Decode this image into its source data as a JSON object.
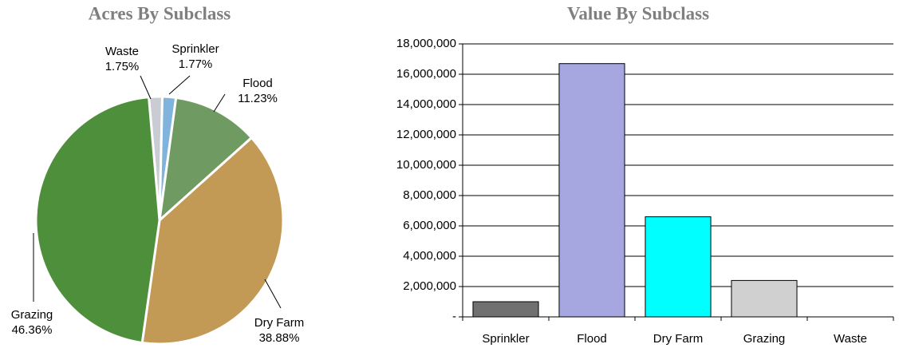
{
  "chart_data": [
    {
      "type": "pie",
      "title": "Acres By Subclass",
      "categories": [
        "Waste",
        "Sprinkler",
        "Flood",
        "Dry Farm",
        "Grazing"
      ],
      "values": [
        1.75,
        1.77,
        11.23,
        38.88,
        46.36
      ],
      "value_labels": [
        "1.75%",
        "1.77%",
        "11.23%",
        "38.88%",
        "46.36%"
      ],
      "colors": [
        "#c9ccd3",
        "#80b4dc",
        "#6f9a62",
        "#c29a55",
        "#4e8f3c"
      ]
    },
    {
      "type": "bar",
      "title": "Value By Subclass",
      "categories": [
        "Sprinkler",
        "Flood",
        "Dry Farm",
        "Grazing",
        "Waste"
      ],
      "values": [
        1000000,
        16700000,
        6600000,
        2400000,
        0
      ],
      "colors": [
        "#707070",
        "#a6a6e0",
        "#00ffff",
        "#d0d0d0",
        "#ffffff"
      ],
      "ylim": [
        0,
        18000000
      ],
      "yticks": [
        {
          "value": 0,
          "label": "-"
        },
        {
          "value": 2000000,
          "label": "2,000,000"
        },
        {
          "value": 4000000,
          "label": "4,000,000"
        },
        {
          "value": 6000000,
          "label": "6,000,000"
        },
        {
          "value": 8000000,
          "label": "8,000,000"
        },
        {
          "value": 10000000,
          "label": "10,000,000"
        },
        {
          "value": 12000000,
          "label": "12,000,000"
        },
        {
          "value": 14000000,
          "label": "14,000,000"
        },
        {
          "value": 16000000,
          "label": "16,000,000"
        },
        {
          "value": 18000000,
          "label": "18,000,000"
        }
      ],
      "grid": true
    }
  ]
}
